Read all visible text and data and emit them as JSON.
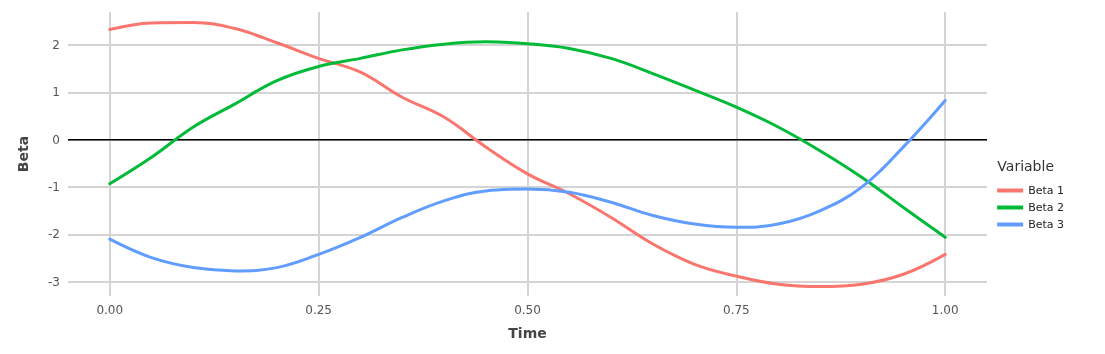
{
  "chart_data": {
    "type": "line",
    "xlabel": "Time",
    "ylabel": "Beta",
    "legend_title": "Variable",
    "x": [
      0,
      0.05,
      0.1,
      0.15,
      0.2,
      0.25,
      0.3,
      0.35,
      0.4,
      0.45,
      0.5,
      0.55,
      0.6,
      0.65,
      0.7,
      0.75,
      0.8,
      0.85,
      0.9,
      0.95,
      1
    ],
    "series": [
      {
        "name": "Beta 1",
        "color": "#f8766d",
        "values": [
          2.33,
          2.47,
          2.48,
          2.35,
          2.05,
          1.72,
          1.43,
          0.9,
          0.48,
          -0.15,
          -0.72,
          -1.14,
          -1.64,
          -2.2,
          -2.63,
          -2.88,
          -3.05,
          -3.1,
          -3.05,
          -2.84,
          -2.42
        ]
      },
      {
        "name": "Beta 2",
        "color": "#00ba38",
        "values": [
          -0.93,
          -0.37,
          0.27,
          0.76,
          1.25,
          1.55,
          1.72,
          1.9,
          2.02,
          2.07,
          2.03,
          1.93,
          1.72,
          1.4,
          1.05,
          0.69,
          0.27,
          -0.23,
          -0.79,
          -1.43,
          -2.06
        ]
      },
      {
        "name": "Beta 3",
        "color": "#619cff",
        "values": [
          -2.1,
          -2.49,
          -2.7,
          -2.77,
          -2.7,
          -2.42,
          -2.06,
          -1.64,
          -1.29,
          -1.08,
          -1.04,
          -1.11,
          -1.32,
          -1.6,
          -1.78,
          -1.85,
          -1.78,
          -1.5,
          -1,
          -0.15,
          0.83
        ]
      }
    ],
    "xlim": [
      -0.05,
      1.05
    ],
    "ylim": [
      -3.3,
      2.7
    ],
    "xticks": [
      {
        "value": 0,
        "label": "0.00"
      },
      {
        "value": 0.25,
        "label": "0.25"
      },
      {
        "value": 0.5,
        "label": "0.50"
      },
      {
        "value": 0.75,
        "label": "0.75"
      },
      {
        "value": 1,
        "label": "1.00"
      }
    ],
    "yticks": [
      -3,
      -2,
      -1,
      0,
      1,
      2
    ],
    "ref_lines": [
      {
        "axis": "y",
        "value": 0,
        "color": "#000000",
        "line_style": "solid"
      }
    ],
    "grid": true,
    "legend": "right",
    "marker": "none",
    "line_style": "solid"
  }
}
